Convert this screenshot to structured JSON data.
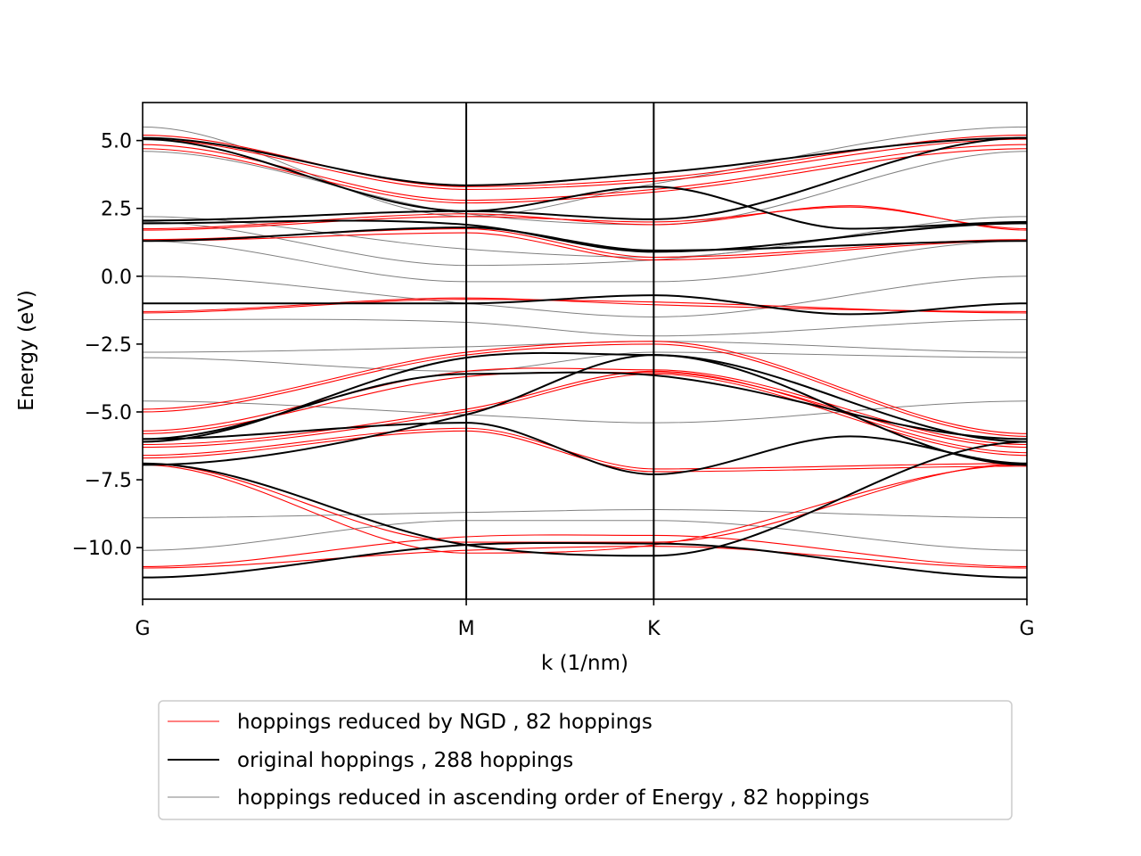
{
  "chart_data": {
    "type": "line",
    "title": "",
    "xlabel": "k (1/nm)",
    "ylabel": "Energy (eV)",
    "xlim": [
      0,
      1
    ],
    "ylim": [
      -11.9,
      6.4
    ],
    "yticks": [
      5.0,
      2.5,
      0.0,
      -2.5,
      -5.0,
      -7.5,
      -10.0
    ],
    "ytick_labels": [
      "5.0",
      "2.5",
      "0.0",
      "−2.5",
      "−5.0",
      "−7.5",
      "−10.0"
    ],
    "xticks": [
      0,
      0.366,
      0.578,
      1
    ],
    "xtick_labels": [
      "G",
      "M",
      "K",
      "G"
    ],
    "vlines": [
      0.366,
      0.578
    ],
    "grid": false,
    "legend_position": "below",
    "series": [
      {
        "name": "hoppings reduced by NGD , 82 hoppings",
        "color": "#ff0000",
        "linewidth": 1.1,
        "bands": [
          [
            [
              0,
              5.2
            ],
            [
              0.366,
              3.3
            ],
            [
              0.578,
              3.6
            ],
            [
              1,
              5.2
            ]
          ],
          [
            [
              0,
              5.05
            ],
            [
              0.366,
              3.2
            ],
            [
              0.578,
              3.5
            ],
            [
              1,
              5.05
            ]
          ],
          [
            [
              0,
              4.85
            ],
            [
              0.366,
              2.8
            ],
            [
              0.578,
              3.2
            ],
            [
              1,
              4.85
            ]
          ],
          [
            [
              0,
              4.7
            ],
            [
              0.366,
              2.7
            ],
            [
              0.578,
              3.1
            ],
            [
              1,
              4.7
            ]
          ],
          [
            [
              0,
              1.75
            ],
            [
              0.366,
              2.3
            ],
            [
              0.578,
              1.9
            ],
            [
              0.8,
              2.6
            ],
            [
              1,
              1.7
            ]
          ],
          [
            [
              0,
              1.7
            ],
            [
              0.366,
              2.2
            ],
            [
              0.578,
              2.0
            ],
            [
              0.8,
              2.55
            ],
            [
              1,
              1.75
            ]
          ],
          [
            [
              0,
              1.35
            ],
            [
              0.366,
              1.75
            ],
            [
              0.578,
              0.7
            ],
            [
              1,
              1.35
            ]
          ],
          [
            [
              0,
              1.3
            ],
            [
              0.366,
              1.6
            ],
            [
              0.578,
              0.6
            ],
            [
              1,
              1.3
            ]
          ],
          [
            [
              0,
              -1.3
            ],
            [
              0.366,
              -0.8
            ],
            [
              0.578,
              -1.05
            ],
            [
              1,
              -1.3
            ]
          ],
          [
            [
              0,
              -1.35
            ],
            [
              0.366,
              -0.85
            ],
            [
              0.578,
              -0.95
            ],
            [
              1,
              -1.35
            ]
          ],
          [
            [
              0,
              -4.9
            ],
            [
              0.366,
              -2.8
            ],
            [
              0.578,
              -2.4
            ],
            [
              1,
              -5.8
            ]
          ],
          [
            [
              0,
              -5.0
            ],
            [
              0.366,
              -2.9
            ],
            [
              0.578,
              -2.5
            ],
            [
              1,
              -5.9
            ]
          ],
          [
            [
              0,
              -5.7
            ],
            [
              0.366,
              -3.5
            ],
            [
              0.578,
              -3.45
            ],
            [
              1,
              -6.2
            ]
          ],
          [
            [
              0,
              -5.8
            ],
            [
              0.366,
              -3.7
            ],
            [
              0.578,
              -3.55
            ],
            [
              1,
              -6.3
            ]
          ],
          [
            [
              0,
              -6.2
            ],
            [
              0.366,
              -4.9
            ],
            [
              0.578,
              -3.5
            ],
            [
              1,
              -6.5
            ]
          ],
          [
            [
              0,
              -6.3
            ],
            [
              0.366,
              -5.0
            ],
            [
              0.578,
              -3.6
            ],
            [
              1,
              -6.6
            ]
          ],
          [
            [
              0,
              -6.6
            ],
            [
              0.366,
              -5.6
            ],
            [
              0.578,
              -7.1
            ],
            [
              1,
              -6.9
            ]
          ],
          [
            [
              0,
              -6.7
            ],
            [
              0.366,
              -5.7
            ],
            [
              0.578,
              -7.2
            ],
            [
              1,
              -7.0
            ]
          ],
          [
            [
              0,
              -10.7
            ],
            [
              0.366,
              -9.6
            ],
            [
              0.578,
              -9.55
            ],
            [
              1,
              -10.7
            ]
          ],
          [
            [
              0,
              -10.75
            ],
            [
              0.366,
              -10.1
            ],
            [
              0.578,
              -9.95
            ],
            [
              1,
              -10.75
            ]
          ],
          [
            [
              0,
              -6.9
            ],
            [
              0.366,
              -9.8
            ],
            [
              0.578,
              -9.8
            ],
            [
              1,
              -6.9
            ]
          ],
          [
            [
              0,
              -6.95
            ],
            [
              0.366,
              -10.2
            ],
            [
              0.578,
              -9.9
            ],
            [
              1,
              -6.95
            ]
          ]
        ]
      },
      {
        "name": "original hoppings , 288 hoppings",
        "color": "#000000",
        "linewidth": 2.0,
        "bands": [
          [
            [
              0,
              5.1
            ],
            [
              0.366,
              3.35
            ],
            [
              0.578,
              3.8
            ],
            [
              1,
              5.1
            ]
          ],
          [
            [
              0,
              5.05
            ],
            [
              0.366,
              2.4
            ],
            [
              0.578,
              3.3
            ],
            [
              0.8,
              1.75
            ],
            [
              1,
              2.0
            ]
          ],
          [
            [
              0,
              2.05
            ],
            [
              0.366,
              2.4
            ],
            [
              0.578,
              2.1
            ],
            [
              1,
              5.1
            ]
          ],
          [
            [
              0,
              1.95
            ],
            [
              0.366,
              1.9
            ],
            [
              0.578,
              0.9
            ],
            [
              1,
              1.95
            ]
          ],
          [
            [
              0,
              1.3
            ],
            [
              0.366,
              1.8
            ],
            [
              0.578,
              0.95
            ],
            [
              1,
              1.3
            ]
          ],
          [
            [
              0,
              -1.0
            ],
            [
              0.366,
              -1.0
            ],
            [
              0.578,
              -0.7
            ],
            [
              0.8,
              -1.4
            ],
            [
              1,
              -1.0
            ]
          ],
          [
            [
              0,
              -6.1
            ],
            [
              0.366,
              -3.0
            ],
            [
              0.578,
              -2.9
            ],
            [
              1,
              -6.1
            ]
          ],
          [
            [
              0,
              -6.0
            ],
            [
              0.366,
              -3.6
            ],
            [
              0.578,
              -3.65
            ],
            [
              1,
              -6.0
            ]
          ],
          [
            [
              0,
              -6.95
            ],
            [
              0.366,
              -5.1
            ],
            [
              0.578,
              -2.9
            ],
            [
              1,
              -6.95
            ]
          ],
          [
            [
              0,
              -6.0
            ],
            [
              0.366,
              -5.4
            ],
            [
              0.578,
              -7.3
            ],
            [
              0.8,
              -5.9
            ],
            [
              1,
              -6.9
            ]
          ],
          [
            [
              0,
              -6.9
            ],
            [
              0.366,
              -9.9
            ],
            [
              0.578,
              -10.3
            ],
            [
              1,
              -6.1
            ]
          ],
          [
            [
              0,
              -11.1
            ],
            [
              0.366,
              -9.9
            ],
            [
              0.578,
              -9.85
            ],
            [
              1,
              -11.1
            ]
          ]
        ]
      },
      {
        "name": "hoppings reduced in ascending order of Energy , 82 hoppings",
        "color": "#808080",
        "linewidth": 1.0,
        "bands": [
          [
            [
              0,
              5.5
            ],
            [
              0.366,
              2.2
            ],
            [
              0.578,
              3.4
            ],
            [
              1,
              5.5
            ]
          ],
          [
            [
              0,
              4.6
            ],
            [
              0.366,
              2.3
            ],
            [
              0.578,
              1.9
            ],
            [
              1,
              4.6
            ]
          ],
          [
            [
              0,
              2.2
            ],
            [
              0.366,
              1.0
            ],
            [
              0.578,
              0.7
            ],
            [
              1,
              2.2
            ]
          ],
          [
            [
              0,
              2.0
            ],
            [
              0.366,
              0.4
            ],
            [
              0.578,
              0.6
            ],
            [
              1,
              2.0
            ]
          ],
          [
            [
              0,
              1.3
            ],
            [
              0.366,
              -0.2
            ],
            [
              0.578,
              -0.2
            ],
            [
              1,
              1.3
            ]
          ],
          [
            [
              0,
              0.0
            ],
            [
              0.366,
              -1.0
            ],
            [
              0.578,
              -1.5
            ],
            [
              1,
              0.0
            ]
          ],
          [
            [
              0,
              -1.6
            ],
            [
              0.366,
              -1.7
            ],
            [
              0.578,
              -2.2
            ],
            [
              1,
              -1.6
            ]
          ],
          [
            [
              0,
              -2.8
            ],
            [
              0.366,
              -2.6
            ],
            [
              0.578,
              -2.4
            ],
            [
              1,
              -2.8
            ]
          ],
          [
            [
              0,
              -3.0
            ],
            [
              0.366,
              -3.5
            ],
            [
              0.578,
              -2.8
            ],
            [
              1,
              -3.0
            ]
          ],
          [
            [
              0,
              -4.6
            ],
            [
              0.366,
              -5.1
            ],
            [
              0.578,
              -5.4
            ],
            [
              1,
              -4.6
            ]
          ],
          [
            [
              0,
              -8.9
            ],
            [
              0.366,
              -8.7
            ],
            [
              0.578,
              -8.6
            ],
            [
              1,
              -8.9
            ]
          ],
          [
            [
              0,
              -10.1
            ],
            [
              0.366,
              -9.0
            ],
            [
              0.578,
              -9.0
            ],
            [
              1,
              -10.1
            ]
          ]
        ]
      }
    ]
  }
}
